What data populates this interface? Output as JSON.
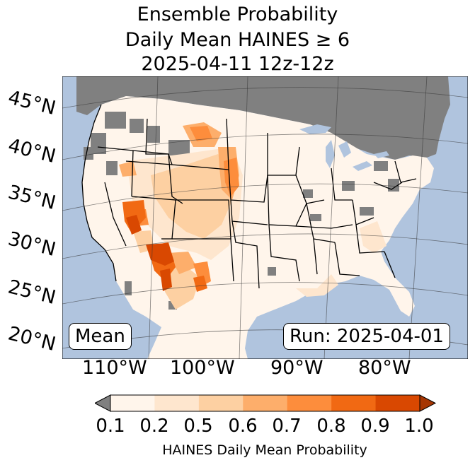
{
  "title": {
    "line1": "Ensemble Probability",
    "line2": "Daily Mean HAINES ≥ 6",
    "line3": "2025-04-11 12z-12z"
  },
  "map": {
    "ocean_color": "#b0c4de",
    "nodata_color": "#808080",
    "lat_labels": [
      "45°N",
      "40°N",
      "35°N",
      "30°N",
      "25°N",
      "20°N"
    ],
    "lon_labels": [
      "110°W",
      "100°W",
      "90°W",
      "80°W"
    ],
    "stat_label": "Mean",
    "run_label": "Run: 2025-04-01"
  },
  "colorbar": {
    "label": "HAINES Daily Mean Probability",
    "ticks": [
      "0.1",
      "0.2",
      "0.5",
      "0.6",
      "0.7",
      "0.8",
      "0.9",
      "1.0"
    ],
    "colors": [
      "#fff5eb",
      "#fee6ce",
      "#fdd0a2",
      "#fdae6b",
      "#fd8d3c",
      "#f16913",
      "#d94801"
    ],
    "under_color": "#808080",
    "over_color": "#a63603"
  }
}
